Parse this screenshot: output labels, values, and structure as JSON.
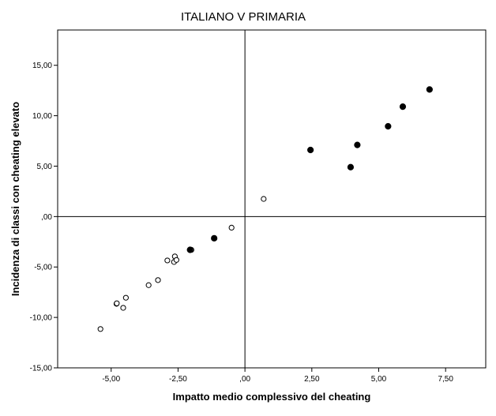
{
  "chart_data": {
    "type": "scatter",
    "title": "ITALIANO V PRIMARIA",
    "xlabel": "Impatto medio complessivo del cheating",
    "ylabel": "Incidenza di classi con cheating elevato",
    "xlim": [
      -7.0,
      9.0
    ],
    "ylim": [
      -15.0,
      18.5
    ],
    "xticks": [
      -5.0,
      -2.5,
      0.0,
      2.5,
      5.0,
      7.5
    ],
    "xtick_labels": [
      "-5,00",
      "-2,50",
      ",00",
      "2,50",
      "5,00",
      "7,50"
    ],
    "yticks": [
      -15.0,
      -10.0,
      -5.0,
      0.0,
      5.0,
      10.0,
      15.0
    ],
    "ytick_labels": [
      "-15,00",
      "-10,00",
      "-5,00",
      ",00",
      "5,00",
      "10,00",
      "15,00"
    ],
    "reference_lines": {
      "x": 0.0,
      "y": 0.0
    },
    "grid": false,
    "legend": "none",
    "series": [
      {
        "marker": "open-circle",
        "x": [
          -5.4,
          -4.8,
          -4.79,
          -4.55,
          -4.45,
          -3.6,
          -3.25,
          -2.9,
          -2.65,
          -2.62,
          -2.56,
          -2.0,
          -0.5,
          0.7
        ],
        "y": [
          -11.15,
          -8.65,
          -8.6,
          -9.05,
          -8.05,
          -6.8,
          -6.3,
          -4.35,
          -4.5,
          -3.95,
          -4.3,
          -3.3,
          -1.1,
          1.75
        ]
      },
      {
        "marker": "filled-circle",
        "x": [
          -2.05,
          -1.15,
          2.45,
          3.95,
          4.2,
          5.35,
          5.9,
          6.9
        ],
        "y": [
          -3.3,
          -2.15,
          6.6,
          4.9,
          7.1,
          8.95,
          10.9,
          12.6
        ]
      }
    ]
  }
}
